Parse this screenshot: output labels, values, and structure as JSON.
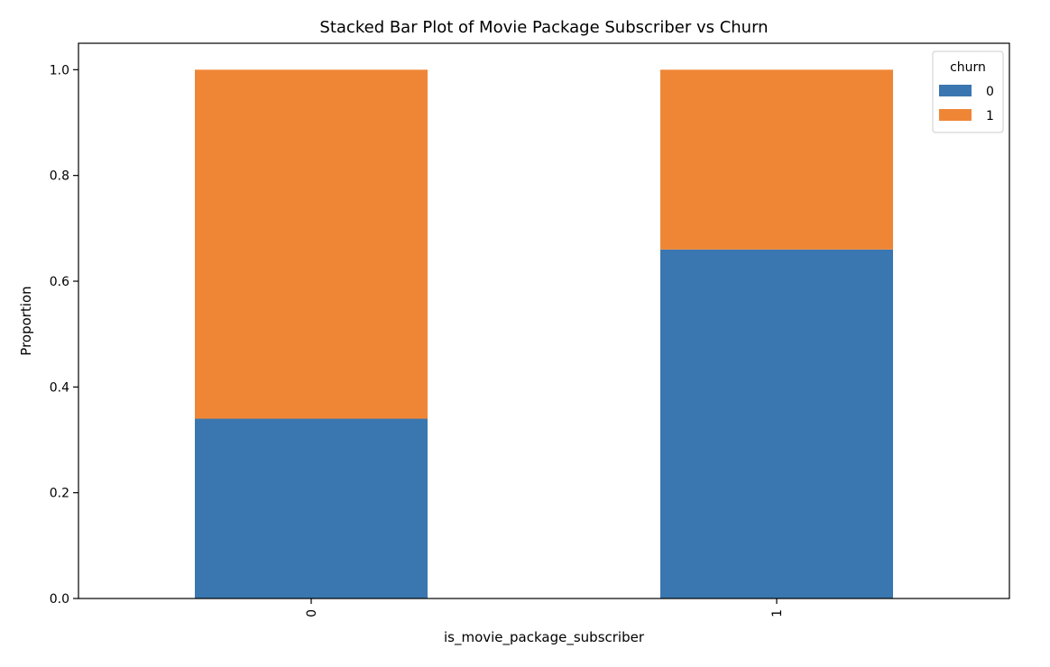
{
  "chart_data": {
    "type": "bar",
    "stacked": true,
    "title": "Stacked Bar Plot of Movie Package Subscriber vs Churn",
    "xlabel": "is_movie_package_subscriber",
    "ylabel": "Proportion",
    "categories": [
      "0",
      "1"
    ],
    "series": [
      {
        "name": "0",
        "color": "#3a76af",
        "values": [
          0.34,
          0.66
        ]
      },
      {
        "name": "1",
        "color": "#ef8636",
        "values": [
          0.66,
          0.34
        ]
      }
    ],
    "ylim": [
      0.0,
      1.05
    ],
    "yticks": [
      0.0,
      0.2,
      0.4,
      0.6,
      0.8,
      1.0
    ],
    "ytick_labels": [
      "0.0",
      "0.2",
      "0.4",
      "0.6",
      "0.8",
      "1.0"
    ],
    "xtick_rotation": "vertical",
    "legend": {
      "title": "churn",
      "placement": "top-right"
    },
    "grid": false
  }
}
